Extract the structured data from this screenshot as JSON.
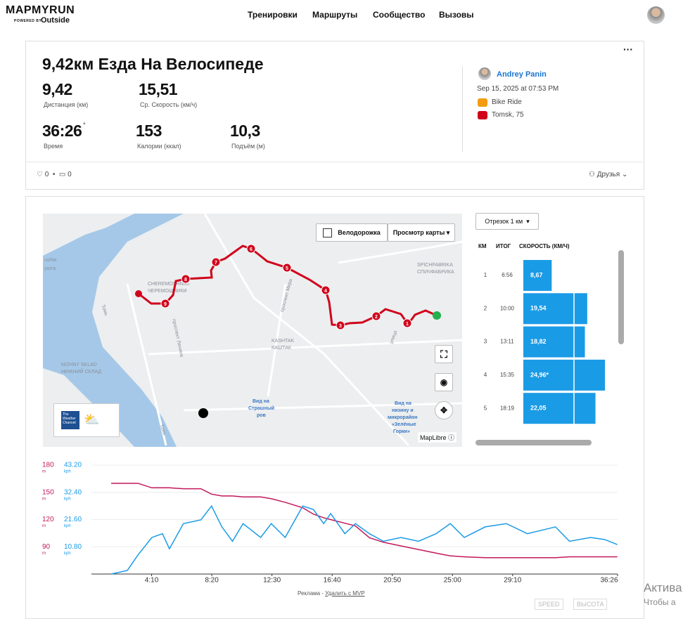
{
  "header": {
    "logo": "MAPMYRUN",
    "powered": "POWERED BY",
    "brand": "Outside",
    "nav": [
      "Тренировки",
      "Маршруты",
      "Сообщество",
      "Вызовы"
    ]
  },
  "workout": {
    "title": "9,42км Езда На Велосипеде",
    "stats": [
      {
        "value": "9,42",
        "label": "Дистанция (км)"
      },
      {
        "value": "15,51",
        "label": "Ср. Скорость (км/ч)"
      },
      {
        "value": "36:26",
        "label": "Время"
      },
      {
        "value": "153",
        "label": "Калории (ккал)"
      },
      {
        "value": "10,3",
        "label": "Подъём (м)"
      }
    ],
    "user": "Andrey Panin",
    "date": "Sep 15, 2025 at 07:53 PM",
    "activity": "Bike Ride",
    "location": "Tomsk, 75",
    "likes": "0",
    "comments": "0",
    "privacy": "Друзья"
  },
  "map": {
    "toggle": "Велодорожка",
    "view": "Просмотр карты",
    "attribution": "MapLibre",
    "weather": [
      "The",
      "Weather",
      "Channel"
    ],
    "markers": [
      "1",
      "2",
      "3",
      "4",
      "5",
      "6",
      "7",
      "8",
      "9"
    ],
    "labels": [
      "ushta",
      "ушта",
      "CHEREMOSHNIKI",
      "ЧЕРЕМОШНИКИ",
      "SPICHFABRIKA",
      "СПИЧФАБРИКА",
      "KASHTAK",
      "КАШТАК",
      "NIZHNY SKLAD",
      "НИЖНИЙ СКЛАД",
      "Томь",
      "Томь",
      "проспект Ленина",
      "проспект Мира",
      "улица",
      "Вид на",
      "Страшный",
      "ров",
      "Вид на",
      "низину и",
      "микрорайон",
      "«Зелёные",
      "Горки»"
    ]
  },
  "splits": {
    "dropdown": "Отрезок 1 км",
    "columns": [
      "КМ",
      "ИТОГ",
      "СКОРОСТЬ (КМ/Ч)"
    ],
    "rows": [
      {
        "km": "1",
        "total": "6:56",
        "speed": 8.67,
        "speed_label": "8,67"
      },
      {
        "km": "2",
        "total": "10:00",
        "speed": 19.54,
        "speed_label": "19,54"
      },
      {
        "km": "3",
        "total": "13:11",
        "speed": 18.82,
        "speed_label": "18,82"
      },
      {
        "km": "4",
        "total": "15:35",
        "speed": 24.96,
        "speed_label": "24,96*"
      },
      {
        "km": "5",
        "total": "18:19",
        "speed": 22.05,
        "speed_label": "22,05"
      }
    ]
  },
  "chart_data": {
    "type": "line",
    "x": [
      82,
      149,
      193,
      251,
      295,
      324,
      382,
      455,
      499,
      542,
      586,
      630,
      703,
      747,
      805,
      878,
      922,
      965,
      994,
      1053,
      1097,
      1155,
      1213,
      1286,
      1359,
      1432,
      1491,
      1549,
      1636,
      1724,
      1811,
      1928,
      1986,
      2074,
      2132,
      2185
    ],
    "xlim": [
      0,
      2186
    ],
    "xticks": [
      {
        "value": 250,
        "label": "4:10"
      },
      {
        "value": 500,
        "label": "8:20"
      },
      {
        "value": 750,
        "label": "12:30"
      },
      {
        "value": 1000,
        "label": "16:40"
      },
      {
        "value": 1250,
        "label": "20:50"
      },
      {
        "value": 1500,
        "label": "25:00"
      },
      {
        "value": 1750,
        "label": "29:10"
      },
      {
        "value": 2186,
        "label": "36:26"
      }
    ],
    "ylim": [
      60,
      180
    ],
    "yticks": [
      90,
      120,
      150,
      180
    ],
    "ylabel": "m",
    "y2lim": [
      0,
      43.2
    ],
    "y2ticks": [
      {
        "value": 10.8,
        "label": "10.80"
      },
      {
        "value": 21.6,
        "label": "21.60"
      },
      {
        "value": 32.4,
        "label": "32.40"
      },
      {
        "value": 43.2,
        "label": "43.20"
      }
    ],
    "y2label": "kph",
    "grid": true,
    "series": [
      {
        "name": "ВЫСОТА",
        "color": "#c2185b",
        "values": [
          160,
          160,
          160,
          155,
          155,
          155,
          154,
          154,
          148,
          146,
          146,
          145,
          145,
          143,
          139,
          133,
          126,
          122,
          120,
          116,
          113,
          100,
          95,
          91,
          87,
          83,
          80,
          79,
          78,
          78,
          78,
          78,
          79,
          79,
          79,
          79
        ]
      },
      {
        "name": "SPEED",
        "color": "#1a9be6",
        "axis": "y2",
        "values": [
          0,
          1.4,
          7.5,
          14.5,
          16,
          10,
          20,
          21.5,
          27,
          18.7,
          13,
          20,
          14.5,
          20,
          14.5,
          27,
          25.6,
          20,
          24,
          16,
          20,
          16,
          13,
          14.5,
          13,
          16,
          20,
          14.5,
          18.7,
          20,
          16,
          18.7,
          13,
          14.5,
          13.7,
          11.7
        ]
      }
    ]
  },
  "footer": {
    "ad": "Реклама -",
    "remove": "Удалить с MVP",
    "windows": [
      "Актива",
      "Чтобы а"
    ]
  }
}
